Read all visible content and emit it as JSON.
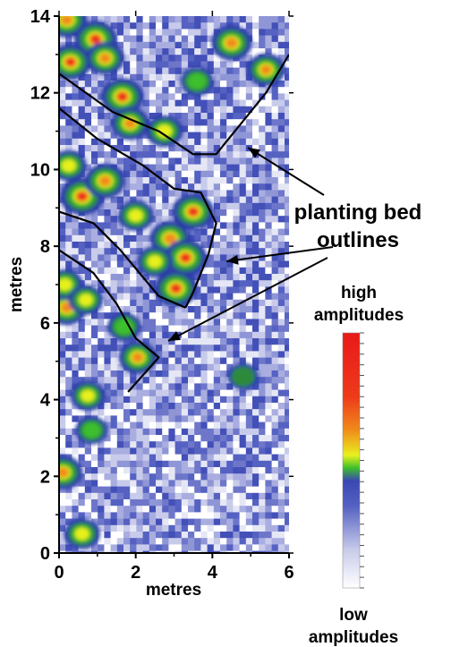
{
  "chart_data": {
    "type": "heatmap",
    "title": "",
    "xlabel": "metres",
    "ylabel": "metres",
    "xlim": [
      0,
      6
    ],
    "ylim": [
      0,
      14
    ],
    "x_ticks": [
      "0",
      "2",
      "4",
      "6"
    ],
    "y_ticks": [
      "0",
      "2",
      "4",
      "6",
      "8",
      "10",
      "12",
      "14"
    ],
    "grid": false,
    "colorscale": {
      "high_label": "high amplitudes",
      "low_label": "low amplitudes",
      "colors": [
        "#ffffff",
        "#c8cbea",
        "#8f96d6",
        "#5562c2",
        "#3a47b2",
        "#2a6f3a",
        "#3cbf2d",
        "#e8f01e",
        "#f08a1a",
        "#ee2a1a"
      ]
    },
    "hotspots": [
      {
        "x": 0.2,
        "y": 13.9,
        "level": 0.8
      },
      {
        "x": 0.95,
        "y": 13.4,
        "level": 0.9
      },
      {
        "x": 0.3,
        "y": 12.8,
        "level": 0.85
      },
      {
        "x": 1.2,
        "y": 12.9,
        "level": 0.7
      },
      {
        "x": 1.65,
        "y": 11.9,
        "level": 0.9
      },
      {
        "x": 1.85,
        "y": 11.2,
        "level": 0.7
      },
      {
        "x": 2.75,
        "y": 11.0,
        "level": 0.65
      },
      {
        "x": 4.5,
        "y": 13.3,
        "level": 0.8
      },
      {
        "x": 5.4,
        "y": 12.6,
        "level": 0.7
      },
      {
        "x": 3.6,
        "y": 12.3,
        "level": 0.5
      },
      {
        "x": 0.6,
        "y": 9.3,
        "level": 0.95
      },
      {
        "x": 1.2,
        "y": 9.7,
        "level": 0.8
      },
      {
        "x": 0.25,
        "y": 10.1,
        "level": 0.6
      },
      {
        "x": 2.0,
        "y": 8.8,
        "level": 0.6
      },
      {
        "x": 2.9,
        "y": 8.2,
        "level": 0.8
      },
      {
        "x": 3.5,
        "y": 8.9,
        "level": 0.85
      },
      {
        "x": 3.3,
        "y": 7.7,
        "level": 0.9
      },
      {
        "x": 3.05,
        "y": 6.9,
        "level": 0.9
      },
      {
        "x": 2.5,
        "y": 7.6,
        "level": 0.6
      },
      {
        "x": 0.2,
        "y": 6.4,
        "level": 0.8
      },
      {
        "x": 0.15,
        "y": 7.0,
        "level": 0.6
      },
      {
        "x": 0.7,
        "y": 6.6,
        "level": 0.55
      },
      {
        "x": 2.05,
        "y": 5.1,
        "level": 0.7
      },
      {
        "x": 1.7,
        "y": 5.9,
        "level": 0.5
      },
      {
        "x": 0.75,
        "y": 4.1,
        "level": 0.55
      },
      {
        "x": 0.1,
        "y": 2.1,
        "level": 0.75
      },
      {
        "x": 0.85,
        "y": 3.2,
        "level": 0.45
      },
      {
        "x": 0.6,
        "y": 0.5,
        "level": 0.6
      },
      {
        "x": 4.8,
        "y": 4.6,
        "level": 0.4
      }
    ],
    "outlines": [
      [
        [
          0,
          12.5
        ],
        [
          1.4,
          11.5
        ],
        [
          2.6,
          11.0
        ],
        [
          3.5,
          10.4
        ],
        [
          4.1,
          10.4
        ],
        [
          5.4,
          12.0
        ],
        [
          6.0,
          13.0
        ]
      ],
      [
        [
          0,
          11.6
        ],
        [
          1.0,
          10.8
        ],
        [
          2.2,
          10.1
        ],
        [
          3.0,
          9.5
        ],
        [
          3.7,
          9.4
        ],
        [
          4.1,
          8.6
        ],
        [
          3.9,
          7.8
        ],
        [
          3.5,
          6.8
        ],
        [
          3.3,
          6.4
        ]
      ],
      [
        [
          0,
          8.9
        ],
        [
          0.9,
          8.6
        ],
        [
          1.6,
          7.9
        ],
        [
          2.1,
          7.3
        ],
        [
          2.6,
          6.7
        ],
        [
          3.3,
          6.4
        ]
      ],
      [
        [
          0,
          7.9
        ],
        [
          0.9,
          7.3
        ],
        [
          1.5,
          6.5
        ],
        [
          2.0,
          5.6
        ],
        [
          2.6,
          5.1
        ],
        [
          1.8,
          4.2
        ]
      ]
    ],
    "annotations": [
      {
        "text": "planting bed",
        "target_outline": 0
      },
      {
        "text": "outlines",
        "target_outline": 1
      }
    ]
  },
  "labels": {
    "annotation_line1": "planting bed",
    "annotation_line2": "outlines",
    "high_line1": "high",
    "high_line2": "amplitudes",
    "low_line1": "low",
    "low_line2": "amplitudes",
    "xlabel": "metres",
    "ylabel": "metres"
  }
}
